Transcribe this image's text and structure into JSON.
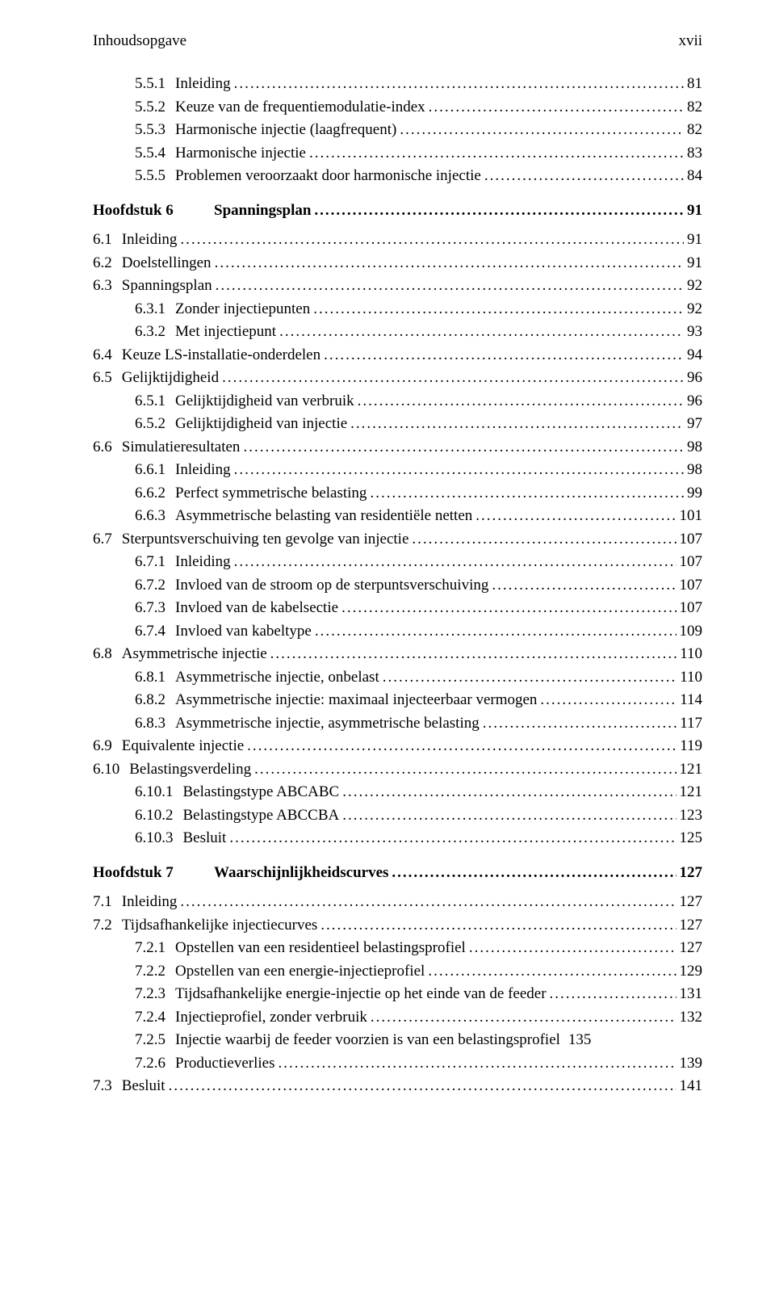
{
  "header": {
    "left": "Inhoudsopgave",
    "right": "xvii"
  },
  "dots": "....................................................................................................................................................................",
  "lines": [
    {
      "type": "entry",
      "indent": 2,
      "num": "5.5.1",
      "title": "Inleiding",
      "page": "81"
    },
    {
      "type": "entry",
      "indent": 2,
      "num": "5.5.2",
      "title": "Keuze van de frequentiemodulatie-index",
      "page": "82"
    },
    {
      "type": "entry",
      "indent": 2,
      "num": "5.5.3",
      "title": "Harmonische injectie (laagfrequent)",
      "page": "82"
    },
    {
      "type": "entry",
      "indent": 2,
      "num": "5.5.4",
      "title": "Harmonische injectie",
      "page": "83"
    },
    {
      "type": "entry",
      "indent": 2,
      "num": "5.5.5",
      "title": "Problemen veroorzaakt door harmonische injectie",
      "page": "84"
    },
    {
      "type": "chapter",
      "label": "Hoofdstuk 6",
      "title": "Spanningsplan",
      "page": "91"
    },
    {
      "type": "entry",
      "indent": 1,
      "num": "6.1",
      "title": "Inleiding",
      "page": "91",
      "gap": true
    },
    {
      "type": "entry",
      "indent": 1,
      "num": "6.2",
      "title": "Doelstellingen",
      "page": "91"
    },
    {
      "type": "entry",
      "indent": 1,
      "num": "6.3",
      "title": "Spanningsplan",
      "page": "92"
    },
    {
      "type": "entry",
      "indent": 2,
      "num": "6.3.1",
      "title": "Zonder injectiepunten",
      "page": "92"
    },
    {
      "type": "entry",
      "indent": 2,
      "num": "6.3.2",
      "title": "Met injectiepunt",
      "page": "93"
    },
    {
      "type": "entry",
      "indent": 1,
      "num": "6.4",
      "title": "Keuze LS-installatie-onderdelen",
      "page": "94"
    },
    {
      "type": "entry",
      "indent": 1,
      "num": "6.5",
      "title": "Gelijktijdigheid",
      "page": "96"
    },
    {
      "type": "entry",
      "indent": 2,
      "num": "6.5.1",
      "title": "Gelijktijdigheid van verbruik",
      "page": "96"
    },
    {
      "type": "entry",
      "indent": 2,
      "num": "6.5.2",
      "title": "Gelijktijdigheid van injectie",
      "page": "97"
    },
    {
      "type": "entry",
      "indent": 1,
      "num": "6.6",
      "title": "Simulatieresultaten",
      "page": "98"
    },
    {
      "type": "entry",
      "indent": 2,
      "num": "6.6.1",
      "title": "Inleiding",
      "page": "98"
    },
    {
      "type": "entry",
      "indent": 2,
      "num": "6.6.2",
      "title": "Perfect symmetrische belasting",
      "page": "99"
    },
    {
      "type": "entry",
      "indent": 2,
      "num": "6.6.3",
      "title": "Asymmetrische belasting van residentiële netten",
      "page": "101"
    },
    {
      "type": "entry",
      "indent": 1,
      "num": "6.7",
      "title": "Sterpuntsverschuiving ten gevolge van injectie",
      "page": "107"
    },
    {
      "type": "entry",
      "indent": 2,
      "num": "6.7.1",
      "title": "Inleiding",
      "page": "107"
    },
    {
      "type": "entry",
      "indent": 2,
      "num": "6.7.2",
      "title": "Invloed van de stroom op de sterpuntsverschuiving",
      "page": "107"
    },
    {
      "type": "entry",
      "indent": 2,
      "num": "6.7.3",
      "title": "Invloed van de kabelsectie",
      "page": "107"
    },
    {
      "type": "entry",
      "indent": 2,
      "num": "6.7.4",
      "title": "Invloed van kabeltype",
      "page": "109"
    },
    {
      "type": "entry",
      "indent": 1,
      "num": "6.8",
      "title": "Asymmetrische injectie",
      "page": "110"
    },
    {
      "type": "entry",
      "indent": 2,
      "num": "6.8.1",
      "title": "Asymmetrische injectie, onbelast",
      "page": "110"
    },
    {
      "type": "entry",
      "indent": 2,
      "num": "6.8.2",
      "title": "Asymmetrische injectie: maximaal injecteerbaar vermogen",
      "page": "114"
    },
    {
      "type": "entry",
      "indent": 2,
      "num": "6.8.3",
      "title": "Asymmetrische injectie, asymmetrische belasting",
      "page": "117"
    },
    {
      "type": "entry",
      "indent": 1,
      "num": "6.9",
      "title": "Equivalente injectie",
      "page": "119"
    },
    {
      "type": "entry",
      "indent": 1,
      "num": "6.10",
      "title": "Belastingsverdeling",
      "page": "121"
    },
    {
      "type": "entry",
      "indent": 2,
      "num": "6.10.1",
      "title": "Belastingstype ABCABC",
      "page": "121"
    },
    {
      "type": "entry",
      "indent": 2,
      "num": "6.10.2",
      "title": "Belastingstype ABCCBA",
      "page": "123"
    },
    {
      "type": "entry",
      "indent": 2,
      "num": "6.10.3",
      "title": "Besluit",
      "page": "125"
    },
    {
      "type": "chapter",
      "label": "Hoofdstuk 7",
      "title": "Waarschijnlijkheidscurves",
      "page": "127"
    },
    {
      "type": "entry",
      "indent": 1,
      "num": "7.1",
      "title": "Inleiding",
      "page": "127",
      "gap": true
    },
    {
      "type": "entry",
      "indent": 1,
      "num": "7.2",
      "title": "Tijdsafhankelijke injectiecurves",
      "page": "127"
    },
    {
      "type": "entry",
      "indent": 2,
      "num": "7.2.1",
      "title": "Opstellen van een residentieel belastingsprofiel",
      "page": "127"
    },
    {
      "type": "entry",
      "indent": 2,
      "num": "7.2.2",
      "title": "Opstellen van een energie-injectieprofiel",
      "page": "129"
    },
    {
      "type": "entry",
      "indent": 2,
      "num": "7.2.3",
      "title": "Tijdsafhankelijke energie-injectie op het einde van de feeder",
      "page": "131"
    },
    {
      "type": "entry",
      "indent": 2,
      "num": "7.2.4",
      "title": "Injectieprofiel, zonder verbruik",
      "page": "132"
    },
    {
      "type": "entry",
      "indent": 2,
      "num": "7.2.5",
      "title": "Injectie waarbij de feeder voorzien is van een belastingsprofiel",
      "page": "135",
      "nodots": true
    },
    {
      "type": "entry",
      "indent": 2,
      "num": "7.2.6",
      "title": "Productieverlies",
      "page": "139"
    },
    {
      "type": "entry",
      "indent": 1,
      "num": "7.3",
      "title": "Besluit",
      "page": "141"
    }
  ]
}
